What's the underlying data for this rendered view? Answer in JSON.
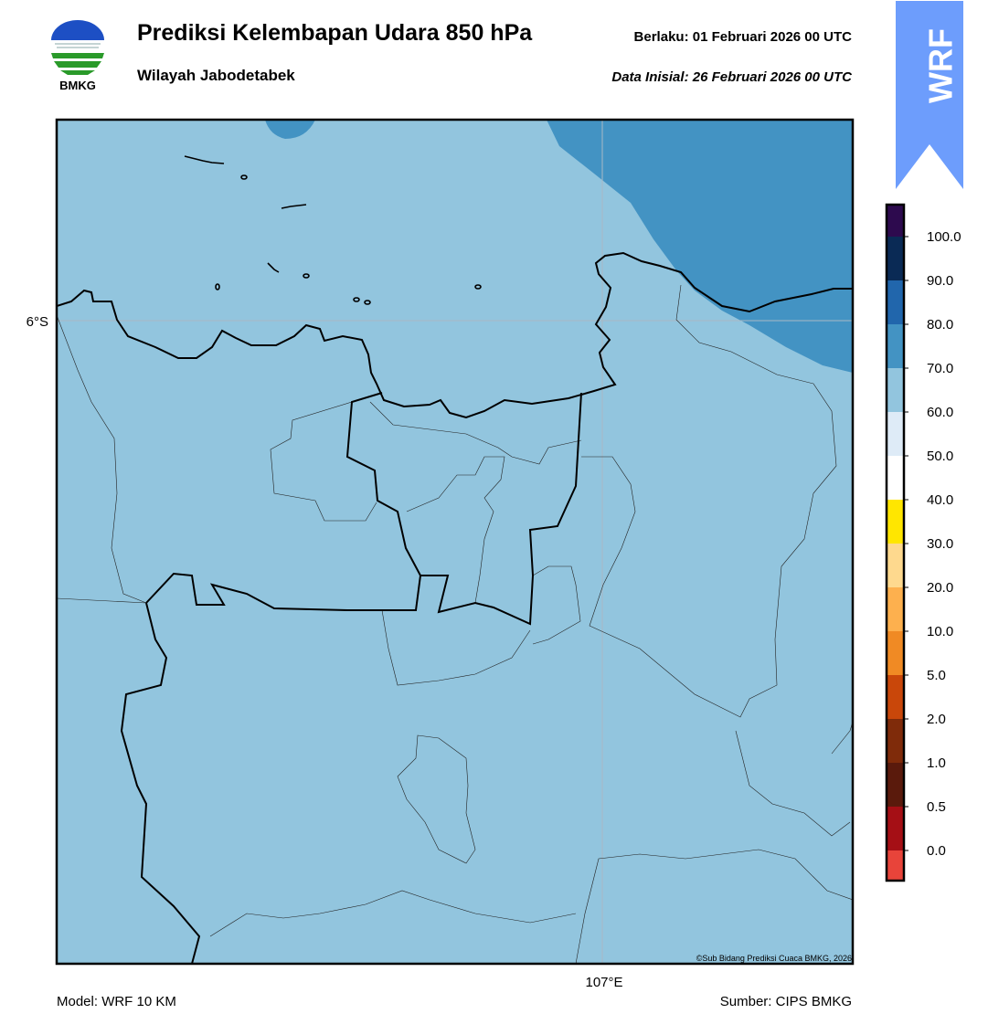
{
  "header": {
    "title": "Prediksi Kelembapan Udara 850 hPa",
    "subtitle": "Wilayah Jabodetabek",
    "valid": "Berlaku:  01 Februari 2026 00 UTC",
    "init": "Data Inisial:  26 Februari 2026 00 UTC"
  },
  "logo": {
    "label": "BMKG"
  },
  "badge": "WRF",
  "map": {
    "lat_label": "6°S",
    "lon_label": "107°E",
    "credit": "©Sub Bidang Prediksi Cuaca BMKG, 2026"
  },
  "colorbar": {
    "ticks": [
      "0.0",
      "0.5",
      "1.0",
      "2.0",
      "5.0",
      "10.0",
      "20.0",
      "30.0",
      "40.0",
      "50.0",
      "60.0",
      "70.0",
      "80.0",
      "90.0",
      "100.0"
    ],
    "colors": [
      "#e8443a",
      "#a50f15",
      "#5a1a0c",
      "#7f2b0a",
      "#c9470a",
      "#f08a24",
      "#fdb04e",
      "#fed98e",
      "#ffe600",
      "#ffffff",
      "#deebf7",
      "#92c5de",
      "#4393c3",
      "#2166ac",
      "#0a2a55",
      "#2d0a4e"
    ]
  },
  "footer": {
    "model": "Model: WRF 10 KM",
    "source": "Sumber: CIPS BMKG"
  }
}
